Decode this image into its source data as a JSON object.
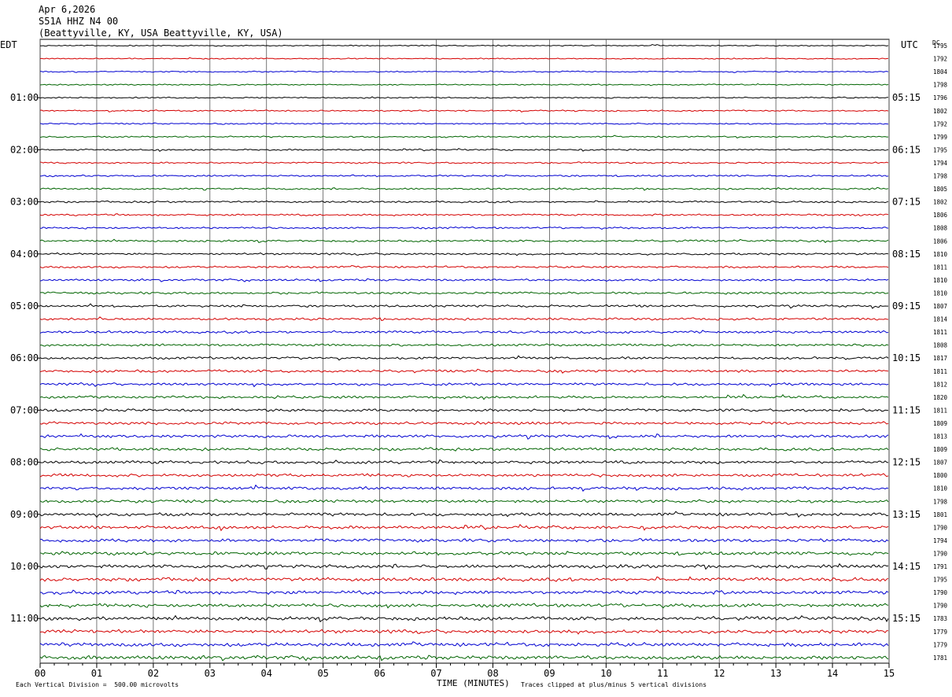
{
  "header": {
    "date": "Apr 6,2026",
    "station": "S51A HHZ N4 00",
    "location": "(Beattyville, KY, USA Beattyville, KY, USA)"
  },
  "left_tz": "EDT",
  "right_tz": "UTC",
  "dc_label": "DC",
  "colors": {
    "trace": [
      "#000000",
      "#d40000",
      "#0000d0",
      "#006400"
    ],
    "grid": "#555555"
  },
  "chart_data": {
    "type": "line",
    "title": "",
    "xlabel": "TIME (MINUTES)",
    "xlim": [
      0,
      15
    ],
    "x_ticks": [
      "00",
      "01",
      "02",
      "03",
      "04",
      "05",
      "06",
      "07",
      "08",
      "09",
      "10",
      "11",
      "12",
      "13",
      "14",
      "15"
    ],
    "left_hour_labels": [
      "01:00",
      "02:00",
      "03:00",
      "04:00",
      "05:00",
      "06:00",
      "07:00",
      "08:00",
      "09:00",
      "10:00",
      "11:00"
    ],
    "right_hour_labels": [
      "05:15",
      "06:15",
      "07:15",
      "08:15",
      "09:15",
      "10:15",
      "11:15",
      "12:15",
      "13:15",
      "14:15",
      "15:15"
    ],
    "dc_offsets": [
      "1795",
      "1792",
      "1804",
      "1798",
      "1796",
      "1802",
      "1792",
      "1799",
      "1795",
      "1794",
      "1798",
      "1805",
      "1802",
      "1806",
      "1808",
      "1806",
      "1810",
      "1811",
      "1810",
      "1810",
      "1807",
      "1814",
      "1811",
      "1808",
      "1817",
      "1811",
      "1812",
      "1820",
      "1811",
      "1809",
      "1813",
      "1809",
      "1807",
      "1800",
      "1810",
      "1798",
      "1801",
      "1790",
      "1794",
      "1790",
      "1791",
      "1795",
      "1790",
      "1790",
      "1783",
      "1779",
      "1779",
      "1781"
    ],
    "scale_note": "Each Vertical Division =  500.00 microvolts",
    "clip_note": "Traces clipped at plus/minus 5 vertical divisions"
  }
}
